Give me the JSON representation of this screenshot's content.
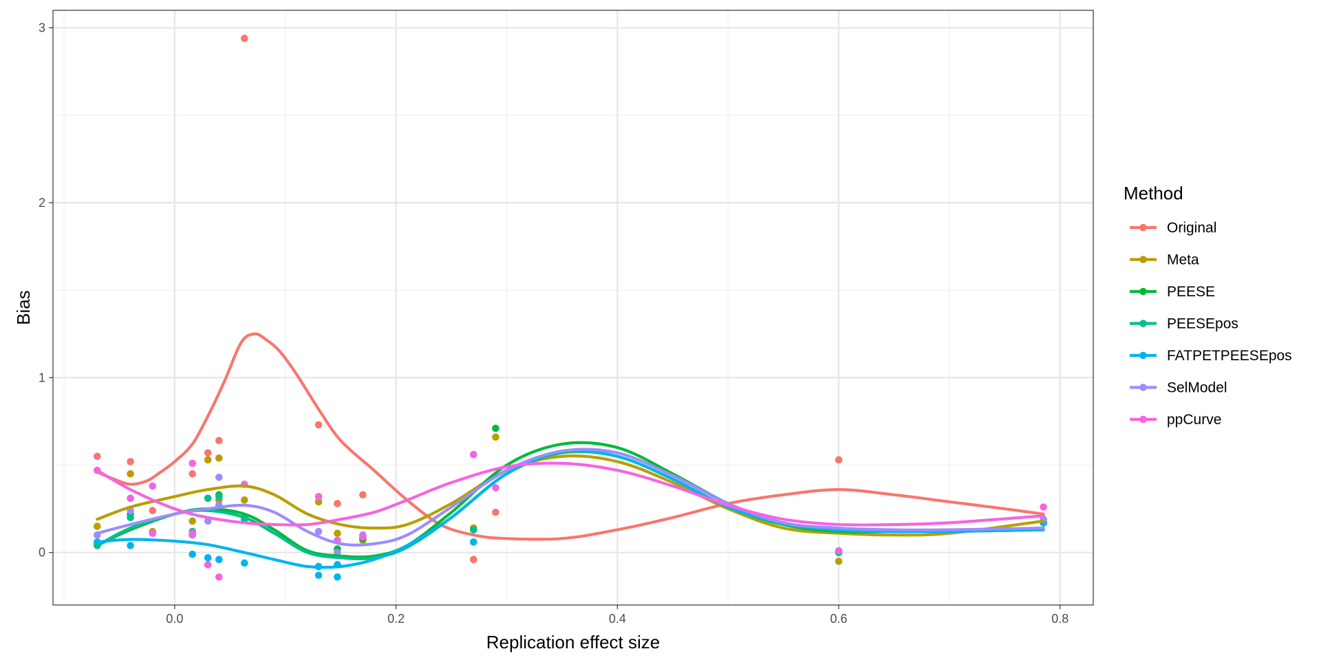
{
  "chart_data": {
    "type": "scatter",
    "xlabel": "Replication effect size",
    "ylabel": "Bias",
    "xlim": [
      -0.11,
      0.83
    ],
    "ylim": [
      -0.3,
      3.1
    ],
    "x_ticks": [
      0.0,
      0.2,
      0.4,
      0.6,
      0.8
    ],
    "x_tick_labels": [
      "0.0",
      "0.2",
      "0.4",
      "0.6",
      "0.8"
    ],
    "y_ticks": [
      0,
      1,
      2,
      3
    ],
    "y_tick_labels": [
      "0",
      "1",
      "2",
      "3"
    ],
    "grid": true,
    "legend": {
      "title": "Method",
      "position": "right"
    },
    "series": [
      {
        "name": "Original",
        "color": "#F8766D",
        "points": [
          [
            -0.07,
            0.55
          ],
          [
            -0.04,
            0.52
          ],
          [
            -0.04,
            0.31
          ],
          [
            -0.02,
            0.24
          ],
          [
            0.016,
            0.45
          ],
          [
            0.03,
            0.57
          ],
          [
            0.04,
            0.64
          ],
          [
            0.063,
            2.94
          ],
          [
            0.13,
            0.73
          ],
          [
            0.147,
            0.28
          ],
          [
            0.17,
            0.33
          ],
          [
            0.27,
            -0.04
          ],
          [
            0.29,
            0.23
          ],
          [
            0.6,
            0.53
          ],
          [
            0.785,
            0.17
          ]
        ],
        "smooth": [
          [
            -0.07,
            0.46
          ],
          [
            -0.055,
            0.42
          ],
          [
            -0.04,
            0.39
          ],
          [
            -0.025,
            0.41
          ],
          [
            -0.015,
            0.45
          ],
          [
            0.0,
            0.52
          ],
          [
            0.016,
            0.62
          ],
          [
            0.03,
            0.78
          ],
          [
            0.045,
            0.98
          ],
          [
            0.06,
            1.2
          ],
          [
            0.072,
            1.25
          ],
          [
            0.082,
            1.22
          ],
          [
            0.095,
            1.15
          ],
          [
            0.11,
            1.02
          ],
          [
            0.13,
            0.82
          ],
          [
            0.15,
            0.64
          ],
          [
            0.18,
            0.47
          ],
          [
            0.21,
            0.3
          ],
          [
            0.24,
            0.16
          ],
          [
            0.27,
            0.1
          ],
          [
            0.3,
            0.08
          ],
          [
            0.35,
            0.08
          ],
          [
            0.4,
            0.13
          ],
          [
            0.45,
            0.2
          ],
          [
            0.5,
            0.28
          ],
          [
            0.55,
            0.33
          ],
          [
            0.6,
            0.36
          ],
          [
            0.65,
            0.33
          ],
          [
            0.7,
            0.29
          ],
          [
            0.75,
            0.25
          ],
          [
            0.785,
            0.22
          ]
        ]
      },
      {
        "name": "Meta",
        "color": "#B79F00",
        "points": [
          [
            -0.07,
            0.15
          ],
          [
            -0.04,
            0.45
          ],
          [
            -0.02,
            0.12
          ],
          [
            0.016,
            0.18
          ],
          [
            0.03,
            0.53
          ],
          [
            0.04,
            0.54
          ],
          [
            0.04,
            0.3
          ],
          [
            0.063,
            0.3
          ],
          [
            0.13,
            0.29
          ],
          [
            0.147,
            0.11
          ],
          [
            0.17,
            0.07
          ],
          [
            0.27,
            0.14
          ],
          [
            0.29,
            0.66
          ],
          [
            0.6,
            -0.05
          ],
          [
            0.785,
            0.19
          ]
        ],
        "smooth": [
          [
            -0.07,
            0.19
          ],
          [
            -0.04,
            0.26
          ],
          [
            0.0,
            0.32
          ],
          [
            0.03,
            0.36
          ],
          [
            0.063,
            0.38
          ],
          [
            0.09,
            0.33
          ],
          [
            0.12,
            0.22
          ],
          [
            0.15,
            0.16
          ],
          [
            0.18,
            0.14
          ],
          [
            0.21,
            0.16
          ],
          [
            0.25,
            0.28
          ],
          [
            0.3,
            0.47
          ],
          [
            0.35,
            0.55
          ],
          [
            0.4,
            0.52
          ],
          [
            0.45,
            0.4
          ],
          [
            0.5,
            0.25
          ],
          [
            0.55,
            0.14
          ],
          [
            0.6,
            0.11
          ],
          [
            0.65,
            0.1
          ],
          [
            0.7,
            0.11
          ],
          [
            0.785,
            0.18
          ]
        ]
      },
      {
        "name": "PEESE",
        "color": "#00BA38",
        "points": [
          [
            -0.07,
            0.05
          ],
          [
            -0.04,
            0.22
          ],
          [
            0.016,
            0.1
          ],
          [
            0.03,
            0.31
          ],
          [
            0.04,
            0.33
          ],
          [
            0.063,
            0.2
          ],
          [
            0.147,
            0.02
          ],
          [
            0.17,
            0.08
          ],
          [
            0.29,
            0.71
          ],
          [
            0.6,
            0.0
          ],
          [
            0.785,
            0.17
          ]
        ],
        "smooth": [
          [
            -0.07,
            0.04
          ],
          [
            -0.04,
            0.13
          ],
          [
            0.0,
            0.22
          ],
          [
            0.03,
            0.25
          ],
          [
            0.063,
            0.22
          ],
          [
            0.09,
            0.13
          ],
          [
            0.12,
            0.01
          ],
          [
            0.15,
            -0.02
          ],
          [
            0.18,
            -0.02
          ],
          [
            0.21,
            0.04
          ],
          [
            0.25,
            0.23
          ],
          [
            0.3,
            0.5
          ],
          [
            0.35,
            0.62
          ],
          [
            0.4,
            0.6
          ],
          [
            0.45,
            0.45
          ],
          [
            0.5,
            0.28
          ],
          [
            0.55,
            0.16
          ],
          [
            0.6,
            0.12
          ],
          [
            0.65,
            0.12
          ],
          [
            0.7,
            0.12
          ],
          [
            0.785,
            0.14
          ]
        ]
      },
      {
        "name": "PEESEpos",
        "color": "#00C08B",
        "points": [
          [
            -0.07,
            0.04
          ],
          [
            -0.04,
            0.2
          ],
          [
            0.016,
            0.12
          ],
          [
            0.03,
            0.31
          ],
          [
            0.04,
            0.32
          ],
          [
            0.063,
            0.19
          ],
          [
            0.13,
            -0.08
          ],
          [
            0.147,
            -0.07
          ],
          [
            0.27,
            0.13
          ],
          [
            0.6,
            0.0
          ],
          [
            0.785,
            0.17
          ]
        ],
        "smooth": [
          [
            -0.07,
            0.04
          ],
          [
            -0.04,
            0.14
          ],
          [
            0.0,
            0.22
          ],
          [
            0.03,
            0.24
          ],
          [
            0.063,
            0.2
          ],
          [
            0.09,
            0.11
          ],
          [
            0.12,
            0.0
          ],
          [
            0.15,
            -0.03
          ],
          [
            0.18,
            -0.03
          ],
          [
            0.21,
            0.03
          ],
          [
            0.25,
            0.2
          ],
          [
            0.3,
            0.45
          ],
          [
            0.35,
            0.57
          ],
          [
            0.4,
            0.55
          ],
          [
            0.45,
            0.42
          ],
          [
            0.5,
            0.26
          ],
          [
            0.55,
            0.16
          ],
          [
            0.6,
            0.13
          ],
          [
            0.65,
            0.12
          ],
          [
            0.7,
            0.12
          ],
          [
            0.785,
            0.13
          ]
        ]
      },
      {
        "name": "FATPETPEESEpos",
        "color": "#00B4EF",
        "points": [
          [
            -0.07,
            0.06
          ],
          [
            -0.04,
            0.04
          ],
          [
            0.016,
            -0.01
          ],
          [
            0.03,
            -0.03
          ],
          [
            0.04,
            -0.04
          ],
          [
            0.063,
            -0.06
          ],
          [
            0.13,
            -0.13
          ],
          [
            0.13,
            -0.08
          ],
          [
            0.147,
            -0.14
          ],
          [
            0.147,
            -0.07
          ],
          [
            0.27,
            0.06
          ],
          [
            0.785,
            0.17
          ]
        ],
        "smooth": [
          [
            -0.07,
            0.06
          ],
          [
            -0.04,
            0.075
          ],
          [
            0.0,
            0.065
          ],
          [
            0.03,
            0.045
          ],
          [
            0.063,
            0.0
          ],
          [
            0.09,
            -0.04
          ],
          [
            0.12,
            -0.08
          ],
          [
            0.15,
            -0.08
          ],
          [
            0.18,
            -0.04
          ],
          [
            0.21,
            0.04
          ],
          [
            0.25,
            0.2
          ],
          [
            0.3,
            0.45
          ],
          [
            0.35,
            0.58
          ],
          [
            0.4,
            0.55
          ],
          [
            0.45,
            0.42
          ],
          [
            0.5,
            0.26
          ],
          [
            0.55,
            0.17
          ],
          [
            0.6,
            0.13
          ],
          [
            0.65,
            0.12
          ],
          [
            0.7,
            0.12
          ],
          [
            0.785,
            0.13
          ]
        ]
      },
      {
        "name": "SelModel",
        "color": "#9D8CFF",
        "points": [
          [
            -0.07,
            0.1
          ],
          [
            -0.04,
            0.24
          ],
          [
            0.016,
            0.1
          ],
          [
            0.03,
            0.18
          ],
          [
            0.04,
            0.43
          ],
          [
            0.04,
            0.27
          ],
          [
            0.13,
            0.12
          ],
          [
            0.147,
            0.0
          ],
          [
            0.17,
            0.1
          ],
          [
            0.785,
            0.19
          ]
        ],
        "smooth": [
          [
            -0.07,
            0.11
          ],
          [
            -0.04,
            0.16
          ],
          [
            0.0,
            0.22
          ],
          [
            0.03,
            0.25
          ],
          [
            0.063,
            0.27
          ],
          [
            0.09,
            0.23
          ],
          [
            0.12,
            0.12
          ],
          [
            0.15,
            0.05
          ],
          [
            0.18,
            0.05
          ],
          [
            0.21,
            0.1
          ],
          [
            0.25,
            0.26
          ],
          [
            0.3,
            0.47
          ],
          [
            0.35,
            0.58
          ],
          [
            0.4,
            0.57
          ],
          [
            0.45,
            0.44
          ],
          [
            0.5,
            0.28
          ],
          [
            0.55,
            0.17
          ],
          [
            0.6,
            0.14
          ],
          [
            0.65,
            0.13
          ],
          [
            0.7,
            0.13
          ],
          [
            0.785,
            0.14
          ]
        ]
      },
      {
        "name": "ppCurve",
        "color": "#F564E3",
        "points": [
          [
            -0.07,
            0.47
          ],
          [
            -0.04,
            0.31
          ],
          [
            -0.02,
            0.38
          ],
          [
            -0.02,
            0.11
          ],
          [
            0.016,
            0.51
          ],
          [
            0.016,
            0.11
          ],
          [
            0.03,
            -0.07
          ],
          [
            0.04,
            -0.14
          ],
          [
            0.063,
            0.39
          ],
          [
            0.13,
            0.32
          ],
          [
            0.147,
            0.07
          ],
          [
            0.17,
            0.09
          ],
          [
            0.27,
            0.56
          ],
          [
            0.29,
            0.37
          ],
          [
            0.6,
            0.01
          ],
          [
            0.785,
            0.26
          ]
        ],
        "smooth": [
          [
            -0.07,
            0.47
          ],
          [
            -0.04,
            0.36
          ],
          [
            0.0,
            0.25
          ],
          [
            0.03,
            0.2
          ],
          [
            0.063,
            0.17
          ],
          [
            0.09,
            0.16
          ],
          [
            0.12,
            0.16
          ],
          [
            0.15,
            0.19
          ],
          [
            0.18,
            0.23
          ],
          [
            0.21,
            0.3
          ],
          [
            0.25,
            0.4
          ],
          [
            0.3,
            0.49
          ],
          [
            0.35,
            0.51
          ],
          [
            0.4,
            0.47
          ],
          [
            0.45,
            0.38
          ],
          [
            0.5,
            0.27
          ],
          [
            0.55,
            0.19
          ],
          [
            0.6,
            0.16
          ],
          [
            0.65,
            0.16
          ],
          [
            0.7,
            0.17
          ],
          [
            0.785,
            0.21
          ]
        ]
      }
    ]
  }
}
